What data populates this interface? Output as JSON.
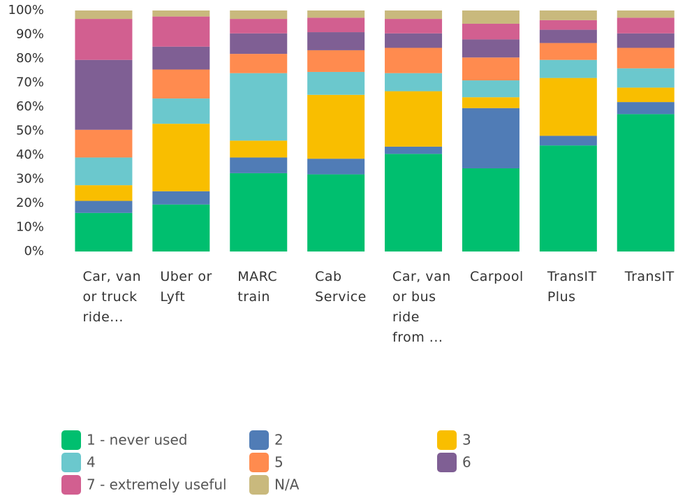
{
  "chart_data": {
    "type": "stacked_bar",
    "categories": [
      "Car, van or truck ride...",
      "Uber or Lyft",
      "MARC train",
      "Cab Service",
      "Car, van or bus ride from ...",
      "Carpool",
      "TransIT Plus",
      "TransIT"
    ],
    "series": [
      {
        "name": "1 - never used",
        "color": "#00bf6f",
        "values": [
          16,
          19.5,
          32.5,
          32,
          40.5,
          34.5,
          44,
          57
        ]
      },
      {
        "name": "2",
        "color": "#507cb6",
        "values": [
          5,
          5.5,
          6.5,
          6.5,
          3,
          25,
          4,
          5
        ]
      },
      {
        "name": "3",
        "color": "#f9be00",
        "values": [
          6.5,
          28,
          7,
          26.5,
          23,
          4.5,
          24,
          6
        ]
      },
      {
        "name": "4",
        "color": "#6bc8cd",
        "values": [
          11.5,
          10.5,
          28,
          9.5,
          7.5,
          7,
          7.5,
          8
        ]
      },
      {
        "name": "5",
        "color": "#ff8b4f",
        "values": [
          11.5,
          12,
          8,
          9,
          10.5,
          9.5,
          7,
          8.5
        ]
      },
      {
        "name": "6",
        "color": "#7f5f94",
        "values": [
          29,
          9.5,
          8.5,
          7.5,
          6,
          7.5,
          5.5,
          6
        ]
      },
      {
        "name": "7 - extremely useful",
        "color": "#d25f90",
        "values": [
          17,
          12.5,
          6,
          6,
          6,
          6.5,
          4,
          6.5
        ]
      },
      {
        "name": "N/A",
        "color": "#c9b97d",
        "values": [
          3.5,
          2.5,
          3.5,
          3,
          3.5,
          5.5,
          4,
          3
        ]
      }
    ],
    "ylim": [
      0,
      100
    ],
    "yticks": [
      {
        "value": 0,
        "label": "0%"
      },
      {
        "value": 10,
        "label": "10%"
      },
      {
        "value": 20,
        "label": "20%"
      },
      {
        "value": 30,
        "label": "30%"
      },
      {
        "value": 40,
        "label": "40%"
      },
      {
        "value": 50,
        "label": "50%"
      },
      {
        "value": 60,
        "label": "60%"
      },
      {
        "value": 70,
        "label": "70%"
      },
      {
        "value": 80,
        "label": "80%"
      },
      {
        "value": 90,
        "label": "90%"
      },
      {
        "value": 100,
        "label": "100%"
      }
    ],
    "grid": false
  }
}
